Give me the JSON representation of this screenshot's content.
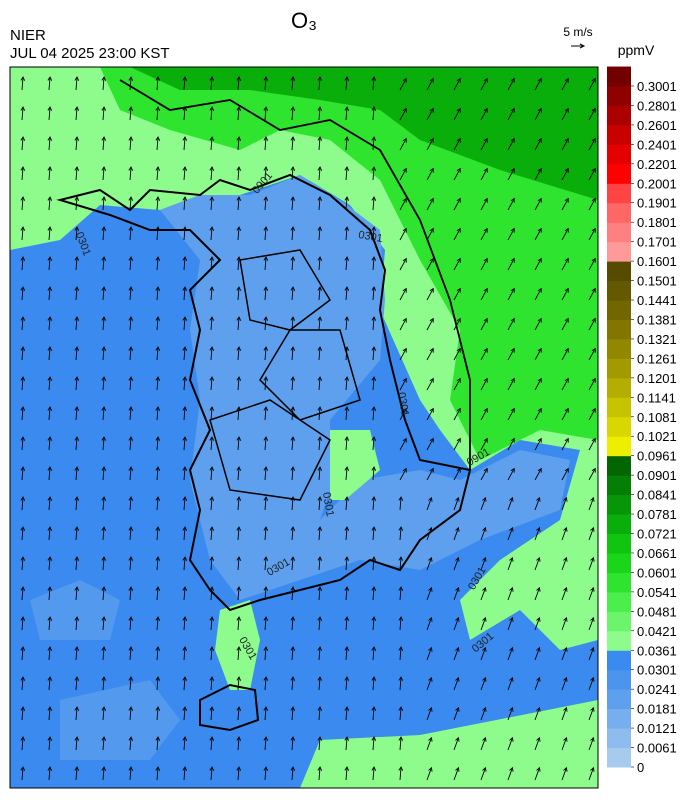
{
  "header": {
    "title": "O₃",
    "agency": "NIER",
    "datetime": "JUL 04 2025 23:00 KST",
    "wind_scale": "5 m/s"
  },
  "map": {
    "contour_labels": [
      "0301",
      "0301",
      "0301",
      "0301",
      "0301",
      "0301",
      "0301",
      "0301",
      "0901",
      "0901"
    ]
  },
  "colorbar": {
    "unit": "ppmV",
    "ticks": [
      0,
      0.0061,
      0.0121,
      0.0181,
      0.0241,
      0.0301,
      0.0361,
      0.0421,
      0.0481,
      0.0541,
      0.0601,
      0.0661,
      0.0721,
      0.0781,
      0.0841,
      0.0901,
      0.0961,
      0.1021,
      0.1081,
      0.1141,
      0.1201,
      0.1261,
      0.1321,
      0.1381,
      0.1441,
      0.1501,
      0.1601,
      0.1701,
      0.1801,
      0.1901,
      0.2001,
      0.2201,
      0.2401,
      0.2601,
      0.2801,
      0.3001
    ],
    "colors": [
      "#a6cbee",
      "#8ebcee",
      "#76aeee",
      "#5ea0ee",
      "#4b95ee",
      "#3a8aef",
      "#8dfc8d",
      "#6cf56c",
      "#4cee4c",
      "#2ee42e",
      "#19d619",
      "#10c410",
      "#0aae0a",
      "#079607",
      "#057e05",
      "#036603",
      "#eeee00",
      "#d8d800",
      "#c6c400",
      "#b4ae00",
      "#a29a00",
      "#928800",
      "#827600",
      "#726600",
      "#645800",
      "#564b00",
      "#ff9a9a",
      "#ff8080",
      "#ff6666",
      "#ff4444",
      "#ff0000",
      "#e40000",
      "#c80000",
      "#ac0000",
      "#900000",
      "#720000"
    ]
  }
}
